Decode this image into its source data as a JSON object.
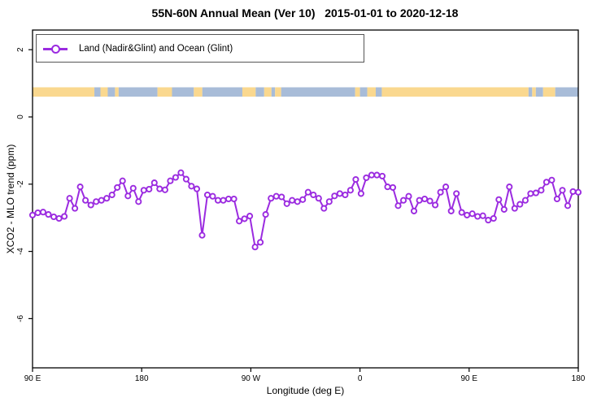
{
  "chart": {
    "title": "55N-60N Annual Mean (Ver 10)   2015-01-01 to 2020-12-18",
    "legend": {
      "label": "Land (Nadir&Glint) and Ocean (Glint)"
    },
    "xlabel": "Longitude (deg E)",
    "ylabel": "XCO2 - MLO trend (ppm)",
    "colors": {
      "series": "#9B2BE0",
      "marker_fill": "#FFFFFF",
      "land": "#FAD88F",
      "ocean": "#A8BCD8",
      "axis": "#000000",
      "legend_border": "#555555"
    },
    "chart_data": {
      "type": "line",
      "title": "55N-60N Annual Mean (Ver 10)   2015-01-01 to 2020-12-18",
      "xlabel": "Longitude (deg E)",
      "ylabel": "XCO2 - MLO trend (ppm)",
      "series_name": "Land (Nadir&Glint) and Ocean (Glint)",
      "x_axis_note": "axis starts at 90E and wraps eastward 450 degrees; x values are offsets in degrees east of 90E",
      "x_ticks": [
        {
          "deg": 0,
          "label": "90 E"
        },
        {
          "deg": 90,
          "label": "180"
        },
        {
          "deg": 180,
          "label": "90 W"
        },
        {
          "deg": 270,
          "label": "0"
        },
        {
          "deg": 360,
          "label": "90 E"
        },
        {
          "deg": 450,
          "label": "180"
        }
      ],
      "y_ticks": [
        2,
        0,
        -2,
        -4,
        -6
      ],
      "x_range_deg": [
        0,
        450
      ],
      "y_range": [
        -7.45,
        2.6
      ],
      "grid": false,
      "legend_position": "top-left",
      "values": [
        -2.92,
        -2.85,
        -2.83,
        -2.9,
        -2.97,
        -3.02,
        -2.96,
        -2.42,
        -2.72,
        -2.08,
        -2.48,
        -2.62,
        -2.52,
        -2.48,
        -2.42,
        -2.32,
        -2.1,
        -1.9,
        -2.35,
        -2.12,
        -2.52,
        -2.18,
        -2.15,
        -1.96,
        -2.14,
        -2.17,
        -1.9,
        -1.8,
        -1.66,
        -1.85,
        -2.06,
        -2.14,
        -3.52,
        -2.32,
        -2.36,
        -2.48,
        -2.48,
        -2.44,
        -2.44,
        -3.1,
        -3.03,
        -2.95,
        -3.87,
        -3.73,
        -2.9,
        -2.42,
        -2.36,
        -2.38,
        -2.58,
        -2.48,
        -2.52,
        -2.46,
        -2.24,
        -2.32,
        -2.42,
        -2.72,
        -2.52,
        -2.35,
        -2.28,
        -2.32,
        -2.18,
        -1.86,
        -2.28,
        -1.81,
        -1.73,
        -1.73,
        -1.76,
        -2.08,
        -2.1,
        -2.64,
        -2.48,
        -2.36,
        -2.8,
        -2.48,
        -2.44,
        -2.5,
        -2.62,
        -2.24,
        -2.08,
        -2.8,
        -2.28,
        -2.84,
        -2.92,
        -2.88,
        -2.96,
        -2.94,
        -3.07,
        -3.02,
        -2.46,
        -2.75,
        -2.08,
        -2.72,
        -2.6,
        -2.48,
        -2.28,
        -2.26,
        -2.18,
        -1.94,
        -1.88,
        -2.44,
        -2.18,
        -2.64,
        -2.22,
        -2.24
      ],
      "map_strip": {
        "description": "55N-60N land/ocean band drawn across plot near y=0.75 ppm",
        "y_center_value": 0.74,
        "segments": [
          {
            "type": "land",
            "from": 0,
            "to": 51
          },
          {
            "type": "ocean",
            "from": 51,
            "to": 56
          },
          {
            "type": "land",
            "from": 56,
            "to": 62
          },
          {
            "type": "ocean",
            "from": 62,
            "to": 68
          },
          {
            "type": "land",
            "from": 68,
            "to": 71
          },
          {
            "type": "ocean",
            "from": 71,
            "to": 103
          },
          {
            "type": "land",
            "from": 103,
            "to": 115
          },
          {
            "type": "ocean",
            "from": 115,
            "to": 133
          },
          {
            "type": "land",
            "from": 133,
            "to": 140
          },
          {
            "type": "ocean",
            "from": 140,
            "to": 173
          },
          {
            "type": "land",
            "from": 173,
            "to": 184
          },
          {
            "type": "ocean",
            "from": 184,
            "to": 191
          },
          {
            "type": "land",
            "from": 191,
            "to": 197
          },
          {
            "type": "ocean",
            "from": 197,
            "to": 200
          },
          {
            "type": "land",
            "from": 200,
            "to": 205
          },
          {
            "type": "ocean",
            "from": 205,
            "to": 266
          },
          {
            "type": "land",
            "from": 266,
            "to": 270
          },
          {
            "type": "ocean",
            "from": 270,
            "to": 276
          },
          {
            "type": "land",
            "from": 276,
            "to": 283
          },
          {
            "type": "ocean",
            "from": 283,
            "to": 288
          },
          {
            "type": "land",
            "from": 288,
            "to": 409
          },
          {
            "type": "ocean",
            "from": 409,
            "to": 412
          },
          {
            "type": "land",
            "from": 412,
            "to": 415
          },
          {
            "type": "ocean",
            "from": 415,
            "to": 421
          },
          {
            "type": "land",
            "from": 421,
            "to": 431
          },
          {
            "type": "ocean",
            "from": 431,
            "to": 450
          }
        ]
      }
    }
  }
}
